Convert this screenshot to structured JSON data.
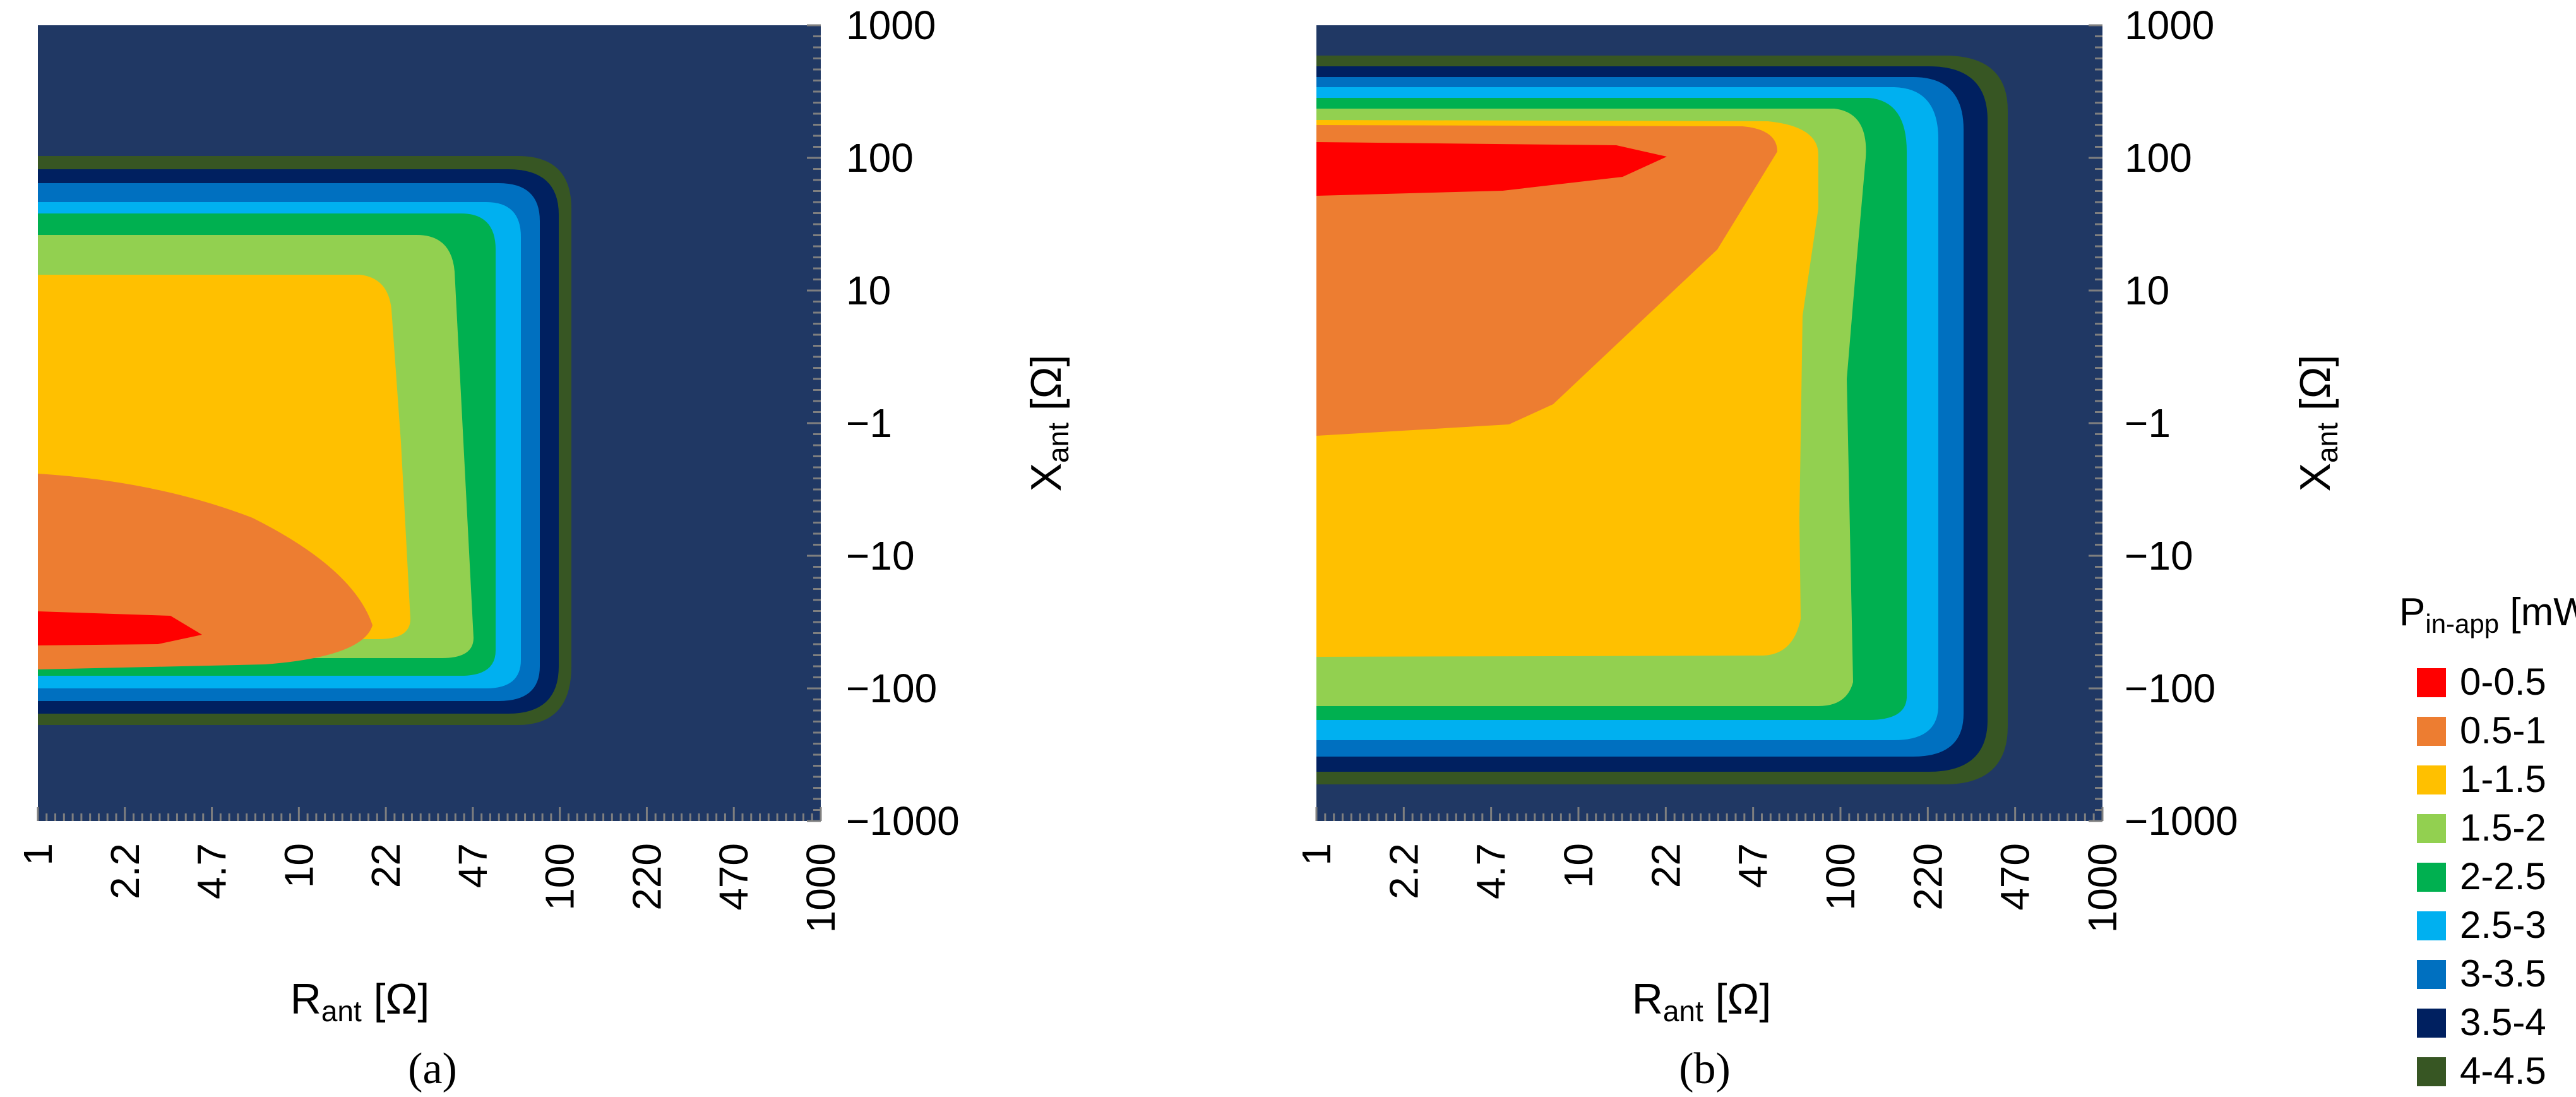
{
  "chart_data": [
    {
      "type": "heatmap",
      "panel_label": "(a)",
      "xlabel_main": "R",
      "xlabel_sub": "ant",
      "xlabel_unit": " [Ω]",
      "ylabel_main": "X",
      "ylabel_sub": "ant",
      "ylabel_unit": " [Ω]",
      "x_ticks": [
        "1",
        "2.2",
        "4.7",
        "10",
        "22",
        "47",
        "100",
        "220",
        "470",
        "1000"
      ],
      "y_ticks": [
        "1000",
        "100",
        "10",
        "−1",
        "−10",
        "−100",
        "−1000"
      ],
      "y_scale": "symmetric-log",
      "x_scale": "log",
      "regions": [
        {
          "level": "4-4.5",
          "r_max": 115,
          "x_top": 120,
          "x_bottom": -130
        },
        {
          "level": "3.5-4",
          "r_max": 98,
          "x_top": 95,
          "x_bottom": -115
        },
        {
          "level": "3-3.5",
          "r_max": 82,
          "x_top": 70,
          "x_bottom": -100
        },
        {
          "level": "2.5-3",
          "r_max": 70,
          "x_top": 50,
          "x_bottom": -90
        },
        {
          "level": "2-2.5",
          "r_max": 55,
          "x_top": 35,
          "x_bottom": -75
        },
        {
          "level": "1.5-2",
          "r_max": 40,
          "x_top": 22,
          "x_bottom": -62
        },
        {
          "level": "1-1.5",
          "r_max": 26,
          "x_top": 15,
          "x_bottom": -50
        },
        {
          "level": "0.5-1",
          "r_max": 20,
          "x_top": -3,
          "x_bottom": -48,
          "x_peak": -25
        },
        {
          "level": "0-0.5",
          "r_max": 4.7,
          "x_top": -20,
          "x_bottom": -30
        }
      ]
    },
    {
      "type": "heatmap",
      "panel_label": "(b)",
      "xlabel_main": "R",
      "xlabel_sub": "ant",
      "xlabel_unit": " [Ω]",
      "ylabel_main": "X",
      "ylabel_sub": "ant",
      "ylabel_unit": " [Ω]",
      "x_ticks": [
        "1",
        "2.2",
        "4.7",
        "10",
        "22",
        "47",
        "100",
        "220",
        "470",
        "1000"
      ],
      "y_ticks": [
        "1000",
        "100",
        "10",
        "−1",
        "−10",
        "−100",
        "−1000"
      ],
      "y_scale": "symmetric-log",
      "x_scale": "log",
      "regions": [
        {
          "level": "4-4.5",
          "r_max": 400,
          "x_top": 800,
          "x_bottom": -280
        },
        {
          "level": "3.5-4",
          "r_max": 340,
          "x_top": 600,
          "x_bottom": -240
        },
        {
          "level": "3-3.5",
          "r_max": 290,
          "x_top": 480,
          "x_bottom": -210
        },
        {
          "level": "2.5-3",
          "r_max": 240,
          "x_top": 400,
          "x_bottom": -180
        },
        {
          "level": "2-2.5",
          "r_max": 190,
          "x_top": 320,
          "x_bottom": -150
        },
        {
          "level": "1.5-2",
          "r_max": 140,
          "x_top": 250,
          "x_bottom": -125
        },
        {
          "level": "1-1.5",
          "r_max": 95,
          "x_top": 200,
          "x_bottom": -70
        },
        {
          "level": "0.5-1",
          "r_max": 75,
          "x_top": 180,
          "x_bottom": -1
        },
        {
          "level": "0-0.5",
          "r_max": 30,
          "x_top": 150,
          "x_bottom": 70
        }
      ]
    }
  ],
  "legend": {
    "title_main": "P",
    "title_sub": "in-app",
    "title_unit": " [mW]",
    "placement": "right",
    "items": [
      {
        "label": "0-0.5",
        "color": "#ff0000"
      },
      {
        "label": "0.5-1",
        "color": "#ed7d31"
      },
      {
        "label": "1-1.5",
        "color": "#ffc000"
      },
      {
        "label": "1.5-2",
        "color": "#92d050"
      },
      {
        "label": "2-2.5",
        "color": "#00b050"
      },
      {
        "label": "2.5-3",
        "color": "#00b0f0"
      },
      {
        "label": "3-3.5",
        "color": "#0070c0"
      },
      {
        "label": "3.5-4",
        "color": "#002060"
      },
      {
        "label": "4-4.5",
        "color": "#375623"
      }
    ]
  },
  "colors": {
    "background": "#203864",
    "tick": "#7f7f7f"
  }
}
